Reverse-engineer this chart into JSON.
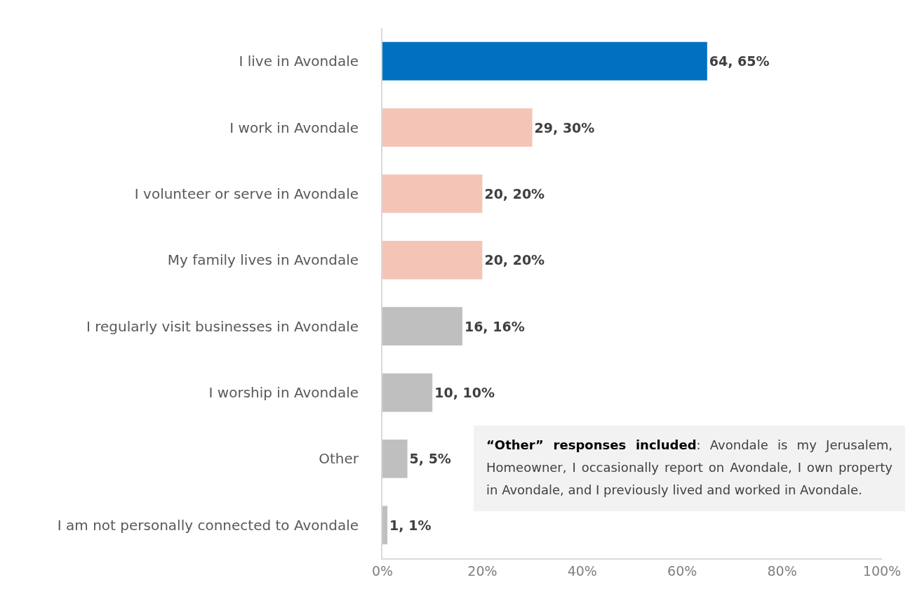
{
  "chart_data": {
    "type": "bar",
    "orientation": "horizontal",
    "categories": [
      "I live in Avondale",
      "I work in Avondale",
      "I volunteer or serve in Avondale",
      "My family lives in Avondale",
      "I regularly visit businesses in Avondale",
      "I worship in Avondale",
      "Other",
      "I am not personally connected to Avondale"
    ],
    "values": [
      65,
      30,
      20,
      20,
      16,
      10,
      5,
      1
    ],
    "value_labels": [
      "64, 65%",
      "29, 30%",
      "20, 20%",
      "20, 20%",
      "16, 16%",
      "10, 10%",
      "5, 5%",
      "1, 1%"
    ],
    "colors": [
      "#0070c0",
      "#f4c5b7",
      "#f4c5b7",
      "#f4c5b7",
      "#bfbfbf",
      "#bfbfbf",
      "#bfbfbf",
      "#bfbfbf"
    ],
    "xlim": [
      0,
      100
    ],
    "xticks": [
      {
        "value": 0,
        "label": "0%"
      },
      {
        "value": 20,
        "label": "20%"
      },
      {
        "value": 40,
        "label": "40%"
      },
      {
        "value": 60,
        "label": "60%"
      },
      {
        "value": 80,
        "label": "80%"
      },
      {
        "value": 100,
        "label": "100%"
      }
    ],
    "grid": false,
    "annotations": [
      "“Other” responses included: Avondale is my Jerusalem, Homeowner, I occasionally report on Avondale, I own property in Avondale, and I previously lived and worked in Avondale."
    ]
  }
}
